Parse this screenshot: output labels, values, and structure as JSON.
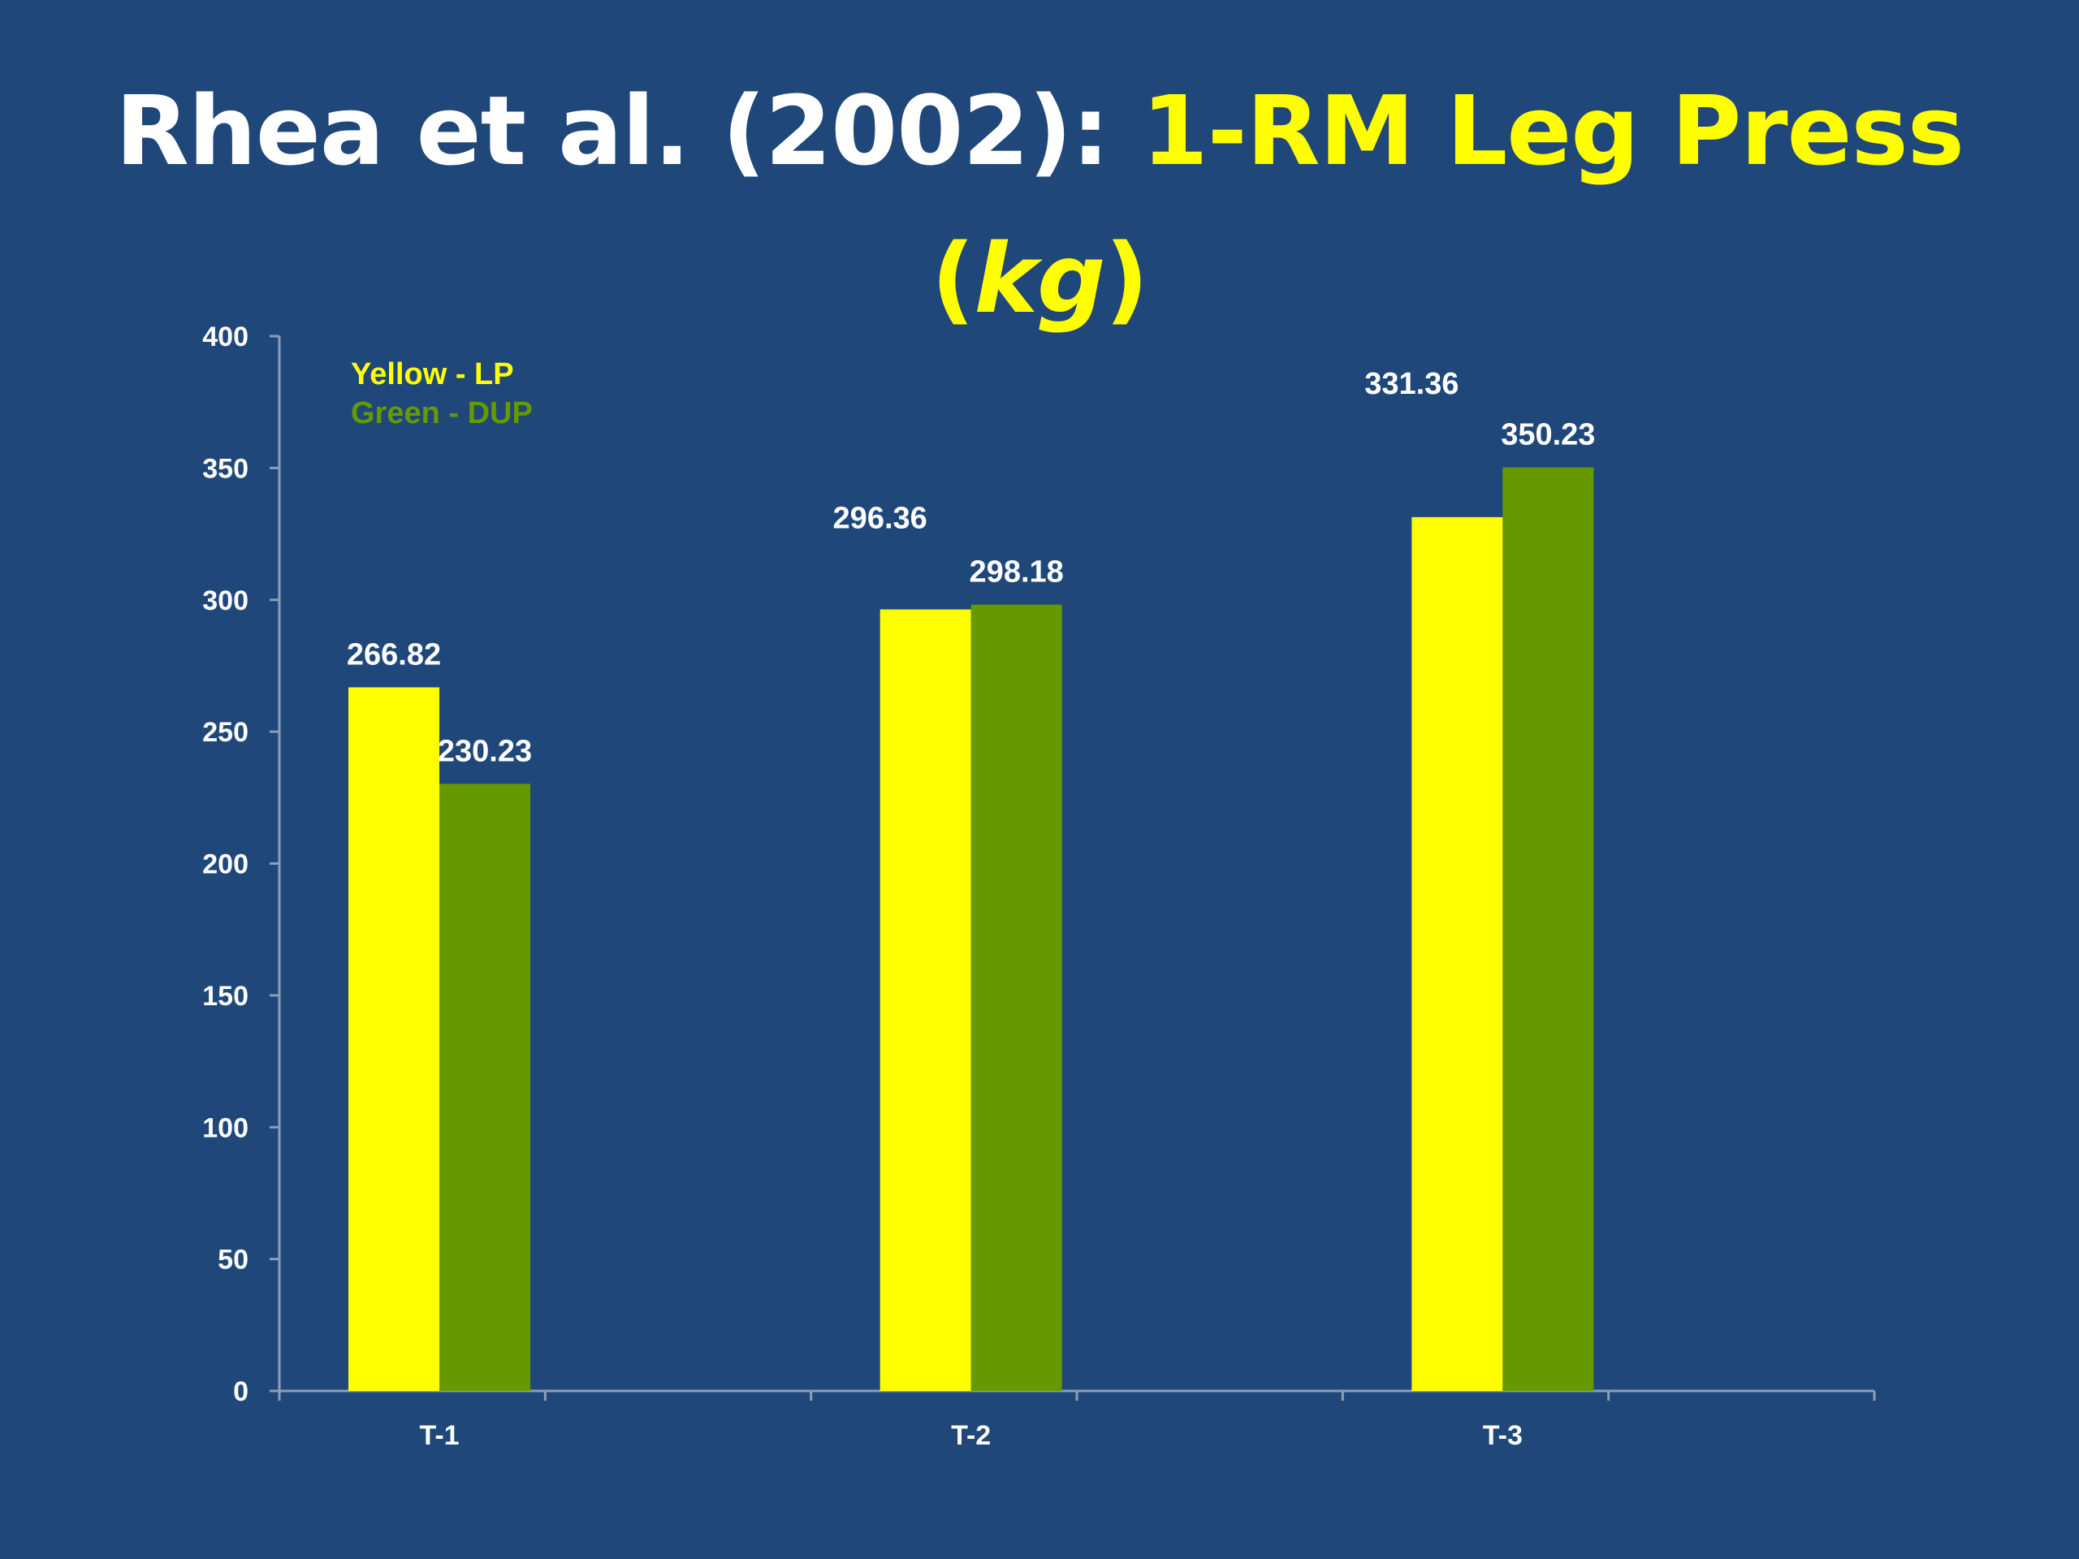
{
  "slide": {
    "title_part1": "Rhea et al. (2002): ",
    "title_part2": "1-RM Leg Press",
    "title_line2_open": "(",
    "title_line2_unit": "kg",
    "title_line2_close": ")"
  },
  "chart_data": {
    "type": "bar",
    "categories": [
      "T-1",
      "T-2",
      "T-3"
    ],
    "series": [
      {
        "name": "Yellow - LP",
        "color": "#ffff00",
        "values": [
          266.82,
          296.36,
          331.36
        ],
        "labels": [
          "266.82",
          "296.36",
          "331.36"
        ]
      },
      {
        "name": "Green - DUP",
        "color": "#669900",
        "values": [
          230.23,
          298.18,
          350.23
        ],
        "labels": [
          "230.23",
          "298.18",
          "350.23"
        ]
      }
    ],
    "ylim": [
      0,
      400
    ],
    "yticks": [
      0,
      50,
      100,
      150,
      200,
      250,
      300,
      350,
      400
    ],
    "ytick_labels": [
      "0",
      "50",
      "100",
      "150",
      "200",
      "250",
      "300",
      "350",
      "400"
    ],
    "xlabel": "",
    "ylabel": "",
    "legend_position": "top-left",
    "grid": false
  },
  "colors": {
    "background": "#1f477a",
    "title_white": "#ffffff",
    "title_yellow": "#ffff00",
    "axis": "#8c9fb8"
  }
}
